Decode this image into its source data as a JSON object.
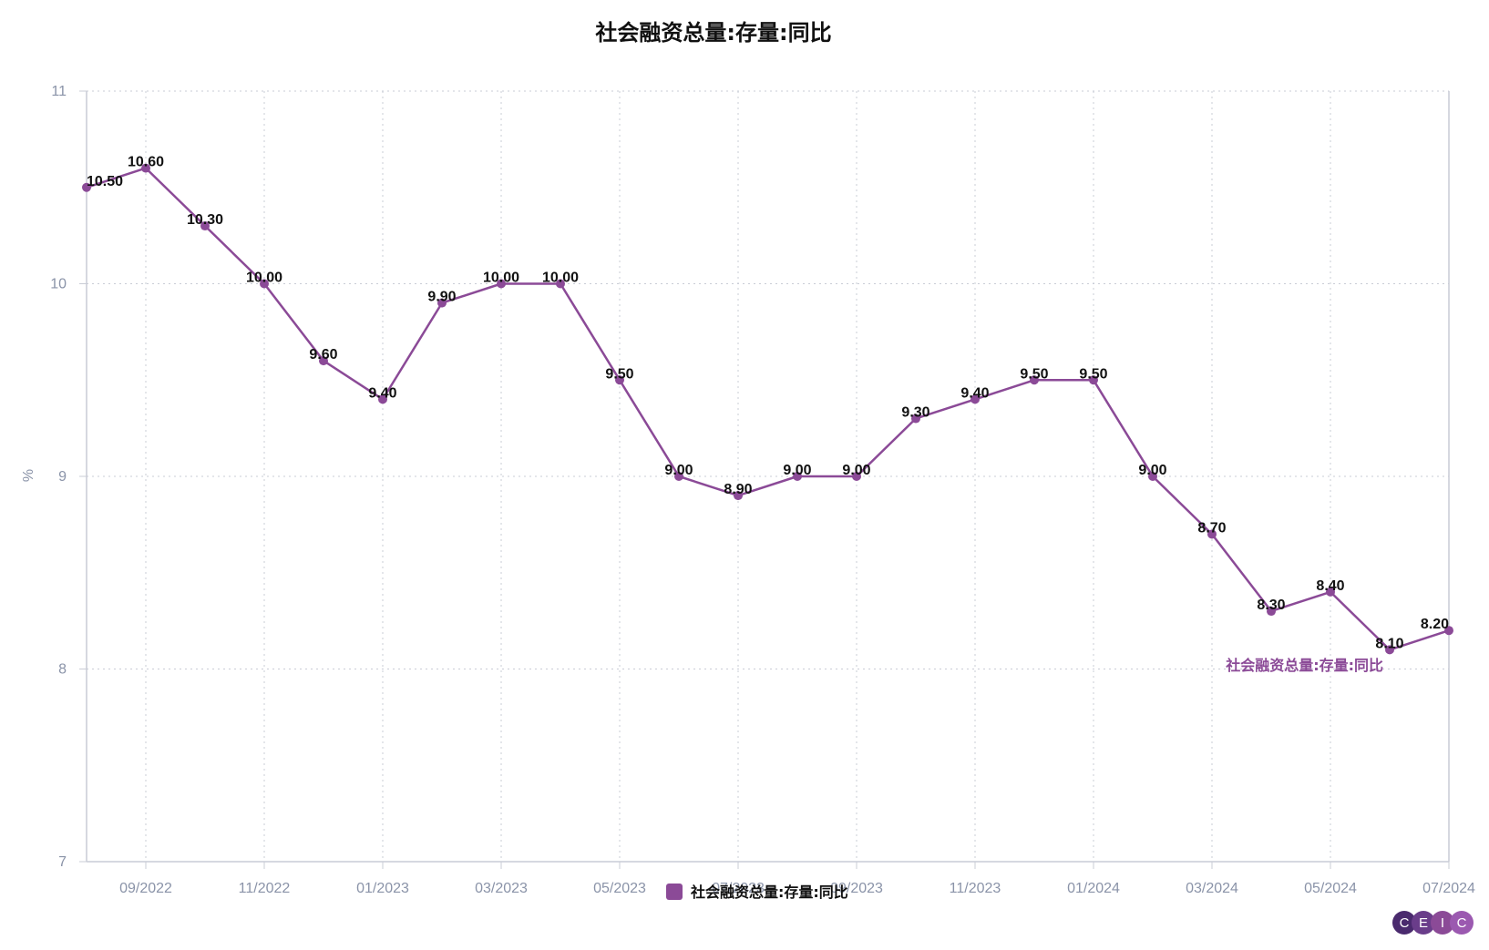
{
  "chart_data": {
    "type": "line",
    "title": "社会融资总量:存量:同比",
    "ylabel": "%",
    "ylim": [
      7,
      11
    ],
    "yticks": [
      7,
      8,
      9,
      10,
      11
    ],
    "x": [
      "08/2022",
      "09/2022",
      "10/2022",
      "11/2022",
      "12/2022",
      "01/2023",
      "02/2023",
      "03/2023",
      "04/2023",
      "05/2023",
      "06/2023",
      "07/2023",
      "08/2023",
      "09/2023",
      "10/2023",
      "11/2023",
      "12/2023",
      "01/2024",
      "02/2024",
      "03/2024",
      "04/2024",
      "05/2024",
      "06/2024",
      "07/2024"
    ],
    "xtick_labels": [
      "09/2022",
      "11/2022",
      "01/2023",
      "03/2023",
      "05/2023",
      "07/2023",
      "09/2023",
      "11/2023",
      "01/2024",
      "03/2024",
      "05/2024",
      "07/2024"
    ],
    "series": [
      {
        "name": "社会融资总量:存量:同比",
        "color": "#8b4a97",
        "values": [
          10.5,
          10.6,
          10.3,
          10.0,
          9.6,
          9.4,
          9.9,
          10.0,
          10.0,
          9.5,
          9.0,
          8.9,
          9.0,
          9.0,
          9.3,
          9.4,
          9.5,
          9.5,
          9.0,
          8.7,
          8.3,
          8.4,
          8.1,
          8.2
        ],
        "labels": [
          "10.50",
          "10.60",
          "10.30",
          "10.00",
          "9.60",
          "9.40",
          "9.90",
          "10.00",
          "10.00",
          "9.50",
          "9.00",
          "8.90",
          "9.00",
          "9.00",
          "9.30",
          "9.40",
          "9.50",
          "9.50",
          "9.00",
          "8.70",
          "8.30",
          "8.40",
          "8.10",
          "8.20"
        ]
      }
    ],
    "grid": true,
    "legend": "bottom-center"
  },
  "logo": {
    "letters": [
      "C",
      "E",
      "I",
      "C"
    ],
    "colors": [
      "#4a2a6e",
      "#6a3d8a",
      "#8b4a97",
      "#9b59b0"
    ]
  }
}
